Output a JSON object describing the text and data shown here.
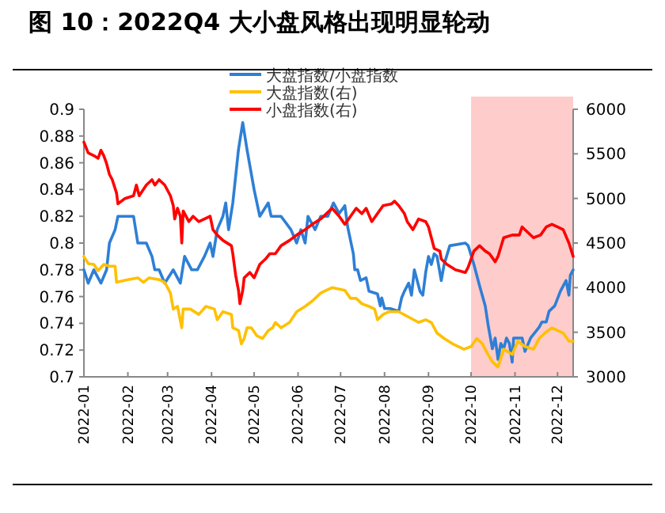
{
  "chart_data": {
    "type": "line",
    "title": "图 10：2022Q4 大小盘风格出现明显轮动",
    "xlim": [
      "2022-01-01",
      "2022-12-12"
    ],
    "xticks": [
      {
        "value": "2022-01-01",
        "label": "2022-01"
      },
      {
        "value": "2022-02-01",
        "label": "2022-02"
      },
      {
        "value": "2022-03-01",
        "label": "2022-03"
      },
      {
        "value": "2022-04-01",
        "label": "2022-04"
      },
      {
        "value": "2022-05-01",
        "label": "2022-05"
      },
      {
        "value": "2022-06-01",
        "label": "2022-06"
      },
      {
        "value": "2022-07-01",
        "label": "2022-07"
      },
      {
        "value": "2022-08-01",
        "label": "2022-08"
      },
      {
        "value": "2022-09-01",
        "label": "2022-09"
      },
      {
        "value": "2022-10-01",
        "label": "2022-10"
      },
      {
        "value": "2022-11-01",
        "label": "2022-11"
      },
      {
        "value": "2022-12-01",
        "label": "2022-12"
      }
    ],
    "ylim": [
      0.7,
      0.9
    ],
    "yticks": [
      0.7,
      0.72,
      0.74,
      0.76,
      0.78,
      0.8,
      0.82,
      0.84,
      0.86,
      0.88,
      0.9
    ],
    "y2lim": [
      3000,
      6000
    ],
    "y2ticks": [
      3000,
      3500,
      4000,
      4500,
      5000,
      5500,
      6000
    ],
    "legend": "top",
    "grid": false,
    "bands": [
      {
        "axis": "x",
        "from": "2022-10-01",
        "to": "2022-12-12",
        "color": "#ffcccc"
      }
    ],
    "series": [
      {
        "name": "大盘指数/小盘指数",
        "color": "#2e7fd6",
        "x": [
          "2022-01-01",
          "2022-01-04",
          "2022-01-08",
          "2022-01-13",
          "2022-01-17",
          "2022-01-19",
          "2022-01-23",
          "2022-01-25",
          "2022-02-05",
          "2022-02-08",
          "2022-02-14",
          "2022-02-18",
          "2022-02-20",
          "2022-02-23",
          "2022-02-27",
          "2022-03-05",
          "2022-03-10",
          "2022-03-13",
          "2022-03-18",
          "2022-03-22",
          "2022-03-27",
          "2022-03-31",
          "2022-04-02",
          "2022-04-05",
          "2022-04-09",
          "2022-04-11",
          "2022-04-13",
          "2022-04-16",
          "2022-04-20",
          "2022-04-23",
          "2022-04-26",
          "2022-05-01",
          "2022-05-05",
          "2022-05-11",
          "2022-05-13",
          "2022-05-20",
          "2022-05-27",
          "2022-05-31",
          "2022-06-03",
          "2022-06-06",
          "2022-06-08",
          "2022-06-13",
          "2022-06-17",
          "2022-06-22",
          "2022-06-26",
          "2022-06-30",
          "2022-07-04",
          "2022-07-06",
          "2022-07-10",
          "2022-07-11",
          "2022-07-13",
          "2022-07-15",
          "2022-07-19",
          "2022-07-21",
          "2022-07-27",
          "2022-07-29",
          "2022-07-30",
          "2022-08-01",
          "2022-08-05",
          "2022-08-11",
          "2022-08-13",
          "2022-08-15",
          "2022-08-18",
          "2022-08-20",
          "2022-08-22",
          "2022-08-26",
          "2022-08-28",
          "2022-08-30",
          "2022-09-01",
          "2022-09-03",
          "2022-09-05",
          "2022-09-07",
          "2022-09-10",
          "2022-09-12",
          "2022-09-16",
          "2022-09-27",
          "2022-09-29",
          "2022-10-03",
          "2022-10-07",
          "2022-10-11",
          "2022-10-13",
          "2022-10-14",
          "2022-10-16",
          "2022-10-18",
          "2022-10-20",
          "2022-10-22",
          "2022-10-24",
          "2022-10-26",
          "2022-10-28",
          "2022-10-30",
          "2022-10-31",
          "2022-11-06",
          "2022-11-08",
          "2022-11-12",
          "2022-11-18",
          "2022-11-20",
          "2022-11-23",
          "2022-11-25",
          "2022-11-29",
          "2022-12-03",
          "2022-12-07",
          "2022-12-09",
          "2022-12-10",
          "2022-12-12"
        ],
        "values": [
          0.78,
          0.77,
          0.78,
          0.77,
          0.78,
          0.8,
          0.81,
          0.82,
          0.82,
          0.8,
          0.8,
          0.79,
          0.78,
          0.78,
          0.77,
          0.78,
          0.77,
          0.79,
          0.78,
          0.78,
          0.79,
          0.8,
          0.79,
          0.81,
          0.82,
          0.83,
          0.81,
          0.83,
          0.87,
          0.89,
          0.87,
          0.84,
          0.82,
          0.83,
          0.82,
          0.82,
          0.81,
          0.8,
          0.81,
          0.8,
          0.82,
          0.81,
          0.82,
          0.82,
          0.83,
          0.822,
          0.828,
          0.812,
          0.792,
          0.78,
          0.78,
          0.772,
          0.774,
          0.764,
          0.762,
          0.753,
          0.759,
          0.751,
          0.751,
          0.749,
          0.759,
          0.764,
          0.77,
          0.761,
          0.78,
          0.764,
          0.761,
          0.778,
          0.79,
          0.784,
          0.792,
          0.79,
          0.772,
          0.784,
          0.798,
          0.8,
          0.798,
          0.784,
          0.768,
          0.753,
          0.739,
          0.733,
          0.721,
          0.729,
          0.713,
          0.725,
          0.721,
          0.729,
          0.725,
          0.711,
          0.729,
          0.729,
          0.719,
          0.729,
          0.737,
          0.741,
          0.741,
          0.749,
          0.753,
          0.764,
          0.772,
          0.761,
          0.776,
          0.78
        ]
      },
      {
        "name": "大盘指数(右)",
        "color": "#ffc000",
        "axis": "y2",
        "x": [
          "2022-01-01",
          "2022-01-04",
          "2022-01-08",
          "2022-01-11",
          "2022-01-15",
          "2022-01-19",
          "2022-01-23",
          "2022-01-24",
          "2022-02-01",
          "2022-02-08",
          "2022-02-12",
          "2022-02-16",
          "2022-02-23",
          "2022-02-27",
          "2022-03-03",
          "2022-03-05",
          "2022-03-08",
          "2022-03-11",
          "2022-03-12",
          "2022-03-17",
          "2022-03-23",
          "2022-03-28",
          "2022-04-03",
          "2022-04-05",
          "2022-04-09",
          "2022-04-15",
          "2022-04-16",
          "2022-04-20",
          "2022-04-22",
          "2022-04-24",
          "2022-04-26",
          "2022-04-29",
          "2022-05-03",
          "2022-05-07",
          "2022-05-11",
          "2022-05-14",
          "2022-05-16",
          "2022-05-20",
          "2022-05-26",
          "2022-05-31",
          "2022-06-06",
          "2022-06-11",
          "2022-06-17",
          "2022-06-21",
          "2022-06-25",
          "2022-07-04",
          "2022-07-08",
          "2022-07-12",
          "2022-07-16",
          "2022-07-21",
          "2022-07-25",
          "2022-07-27",
          "2022-07-31",
          "2022-08-04",
          "2022-08-11",
          "2022-08-18",
          "2022-08-25",
          "2022-08-30",
          "2022-09-03",
          "2022-09-07",
          "2022-09-12",
          "2022-09-18",
          "2022-09-26",
          "2022-10-01",
          "2022-10-05",
          "2022-10-09",
          "2022-10-13",
          "2022-10-16",
          "2022-10-20",
          "2022-10-24",
          "2022-10-30",
          "2022-11-03",
          "2022-11-08",
          "2022-11-14",
          "2022-11-18",
          "2022-11-22",
          "2022-11-27",
          "2022-12-01",
          "2022-12-05",
          "2022-12-09",
          "2022-12-12"
        ],
        "values": [
          4350,
          4270,
          4260,
          4190,
          4260,
          4240,
          4240,
          4060,
          4090,
          4110,
          4060,
          4110,
          4090,
          4060,
          3940,
          3760,
          3790,
          3550,
          3760,
          3760,
          3700,
          3790,
          3760,
          3640,
          3730,
          3700,
          3550,
          3520,
          3370,
          3430,
          3550,
          3550,
          3460,
          3430,
          3520,
          3550,
          3610,
          3550,
          3610,
          3730,
          3790,
          3850,
          3940,
          3970,
          4000,
          3970,
          3880,
          3880,
          3820,
          3790,
          3760,
          3640,
          3700,
          3730,
          3730,
          3670,
          3610,
          3640,
          3610,
          3490,
          3430,
          3370,
          3310,
          3340,
          3430,
          3370,
          3250,
          3170,
          3110,
          3310,
          3250,
          3400,
          3340,
          3310,
          3430,
          3490,
          3550,
          3520,
          3490,
          3400,
          3400
        ]
      },
      {
        "name": "小盘指数(右)",
        "color": "#ff0000",
        "axis": "y2",
        "x": [
          "2022-01-01",
          "2022-01-04",
          "2022-01-08",
          "2022-01-11",
          "2022-01-13",
          "2022-01-15",
          "2022-01-17",
          "2022-01-19",
          "2022-01-21",
          "2022-01-24",
          "2022-01-25",
          "2022-01-30",
          "2022-02-05",
          "2022-02-07",
          "2022-02-09",
          "2022-02-14",
          "2022-02-18",
          "2022-02-20",
          "2022-02-23",
          "2022-02-27",
          "2022-03-03",
          "2022-03-05",
          "2022-03-06",
          "2022-03-08",
          "2022-03-10",
          "2022-03-11",
          "2022-03-12",
          "2022-03-16",
          "2022-03-19",
          "2022-03-23",
          "2022-03-27",
          "2022-03-31",
          "2022-04-02",
          "2022-04-05",
          "2022-04-09",
          "2022-04-15",
          "2022-04-16",
          "2022-04-18",
          "2022-04-20",
          "2022-04-21",
          "2022-04-23",
          "2022-04-24",
          "2022-04-28",
          "2022-05-01",
          "2022-05-05",
          "2022-05-09",
          "2022-05-12",
          "2022-05-16",
          "2022-05-20",
          "2022-05-26",
          "2022-05-31",
          "2022-06-06",
          "2022-06-11",
          "2022-06-17",
          "2022-06-21",
          "2022-06-25",
          "2022-06-30",
          "2022-07-04",
          "2022-07-08",
          "2022-07-12",
          "2022-07-16",
          "2022-07-19",
          "2022-07-23",
          "2022-07-27",
          "2022-07-31",
          "2022-08-06",
          "2022-08-08",
          "2022-08-11",
          "2022-08-15",
          "2022-08-17",
          "2022-08-21",
          "2022-08-25",
          "2022-08-30",
          "2022-09-01",
          "2022-09-05",
          "2022-09-09",
          "2022-09-10",
          "2022-09-14",
          "2022-09-20",
          "2022-09-27",
          "2022-09-29",
          "2022-10-03",
          "2022-10-07",
          "2022-10-11",
          "2022-10-14",
          "2022-10-18",
          "2022-10-20",
          "2022-10-24",
          "2022-10-30",
          "2022-11-04",
          "2022-11-06",
          "2022-11-10",
          "2022-11-14",
          "2022-11-19",
          "2022-11-23",
          "2022-11-27",
          "2022-12-01",
          "2022-12-05",
          "2022-12-09",
          "2022-12-12"
        ],
        "values": [
          5630,
          5510,
          5480,
          5450,
          5540,
          5480,
          5390,
          5270,
          5210,
          5060,
          4940,
          5000,
          5030,
          5150,
          5030,
          5150,
          5210,
          5150,
          5210,
          5150,
          5030,
          4920,
          4770,
          4890,
          4800,
          4500,
          4860,
          4740,
          4800,
          4740,
          4770,
          4800,
          4650,
          4590,
          4530,
          4470,
          4380,
          4140,
          3970,
          3820,
          3970,
          4110,
          4170,
          4110,
          4260,
          4320,
          4380,
          4380,
          4470,
          4530,
          4590,
          4650,
          4710,
          4770,
          4830,
          4890,
          4800,
          4710,
          4800,
          4890,
          4830,
          4890,
          4740,
          4830,
          4920,
          4940,
          4970,
          4920,
          4830,
          4740,
          4650,
          4770,
          4740,
          4680,
          4440,
          4410,
          4320,
          4260,
          4200,
          4170,
          4230,
          4410,
          4470,
          4410,
          4380,
          4290,
          4350,
          4560,
          4590,
          4590,
          4680,
          4620,
          4560,
          4590,
          4680,
          4710,
          4680,
          4650,
          4500,
          4350
        ]
      }
    ]
  }
}
